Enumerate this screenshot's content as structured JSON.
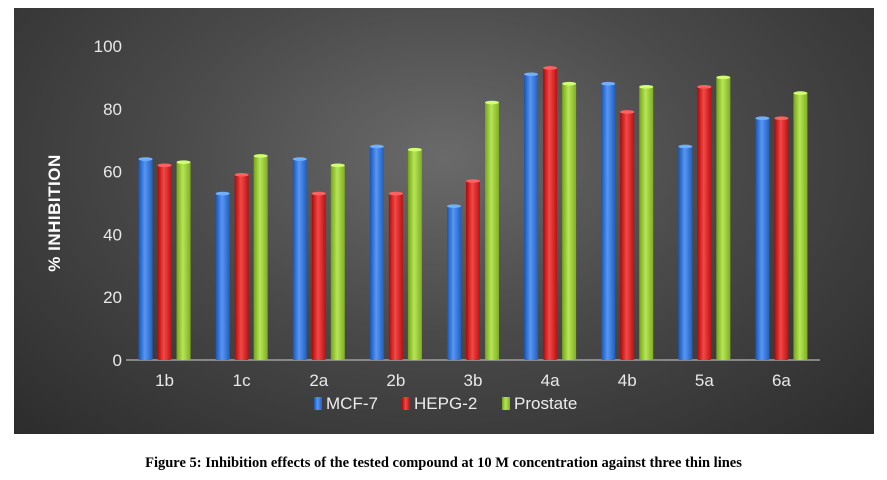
{
  "chart_data": {
    "type": "bar",
    "categories": [
      "1b",
      "1c",
      "2a",
      "2b",
      "3b",
      "4a",
      "4b",
      "5a",
      "6a"
    ],
    "series": [
      {
        "name": "MCF-7",
        "color": "#3a78d8",
        "values": [
          64,
          53,
          64,
          68,
          49,
          91,
          88,
          68,
          77
        ]
      },
      {
        "name": "HEPG-2",
        "color": "#d42a2a",
        "values": [
          62,
          59,
          53,
          53,
          57,
          93,
          79,
          87,
          77
        ]
      },
      {
        "name": "Prostate",
        "color": "#98c83a",
        "values": [
          63,
          65,
          62,
          67,
          82,
          88,
          87,
          90,
          85
        ]
      }
    ],
    "ylabel": "% INHIBITION",
    "xlabel": "",
    "ylim": [
      0,
      100
    ],
    "yticks": [
      "0",
      "20",
      "40",
      "60",
      "80",
      "100"
    ],
    "legend_position": "bottom",
    "grid": false
  },
  "caption": "Figure 5: Inhibition effects of the tested compound at 10 M concentration against three thin lines"
}
